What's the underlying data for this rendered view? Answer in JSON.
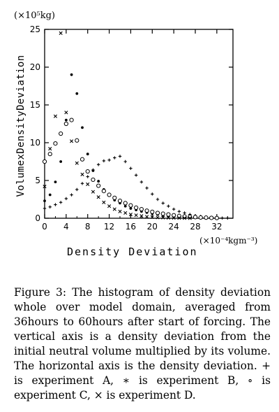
{
  "chart_data": {
    "type": "scatter",
    "y_unit": "(×10⁵kg)",
    "ylabel": "VolumexDensityDeviation",
    "x_unit": "(×10⁻⁴kgm⁻³)",
    "xlabel": "Density Deviation",
    "xlim": [
      0,
      35
    ],
    "ylim": [
      0,
      25
    ],
    "x_ticks": [
      "0",
      "4",
      "8",
      "12",
      "16",
      "20",
      "24",
      "28",
      "32"
    ],
    "x_tick_values": [
      0,
      4,
      8,
      12,
      16,
      20,
      24,
      28,
      32
    ],
    "y_ticks": [
      "0",
      "5",
      "10",
      "15",
      "20",
      "25"
    ],
    "y_tick_values": [
      0,
      5,
      10,
      15,
      20,
      25
    ],
    "grid": false,
    "series": [
      {
        "marker": "plus",
        "points": [
          [
            0,
            1.3
          ],
          [
            1,
            1.5
          ],
          [
            2,
            1.8
          ],
          [
            3,
            2.1
          ],
          [
            4,
            2.6
          ],
          [
            5,
            3.1
          ],
          [
            6,
            3.8
          ],
          [
            7,
            4.6
          ],
          [
            8,
            5.5
          ],
          [
            9,
            6.4
          ],
          [
            10,
            7.1
          ],
          [
            11,
            7.6
          ],
          [
            12,
            7.7
          ],
          [
            13,
            8.0
          ],
          [
            14,
            8.2
          ],
          [
            15,
            7.5
          ],
          [
            16,
            6.6
          ],
          [
            17,
            5.7
          ],
          [
            18,
            4.8
          ],
          [
            19,
            4.0
          ],
          [
            20,
            3.2
          ],
          [
            21,
            2.5
          ],
          [
            22,
            2.0
          ],
          [
            23,
            1.6
          ],
          [
            24,
            1.2
          ],
          [
            25,
            0.9
          ],
          [
            26,
            0.7
          ],
          [
            27,
            0.5
          ],
          [
            28,
            0.35
          ],
          [
            29,
            0.25
          ],
          [
            30,
            0.15
          ],
          [
            31,
            0.1
          ],
          [
            32,
            0.05
          ],
          [
            33,
            0.03
          ],
          [
            34,
            0.02
          ]
        ]
      },
      {
        "marker": "asterisk",
        "points": [
          [
            0,
            2.3
          ],
          [
            1,
            3.1
          ],
          [
            2,
            4.8
          ],
          [
            3,
            7.5
          ],
          [
            4,
            13.0
          ],
          [
            5,
            19.0
          ],
          [
            6,
            16.5
          ],
          [
            7,
            12.0
          ],
          [
            8,
            8.5
          ],
          [
            9,
            6.3
          ],
          [
            10,
            4.9
          ],
          [
            11,
            3.8
          ],
          [
            12,
            3.0
          ],
          [
            13,
            2.4
          ],
          [
            14,
            2.0
          ],
          [
            15,
            1.6
          ],
          [
            16,
            1.3
          ],
          [
            17,
            1.1
          ],
          [
            18,
            0.9
          ],
          [
            19,
            0.75
          ],
          [
            20,
            0.6
          ],
          [
            21,
            0.5
          ],
          [
            22,
            0.4
          ],
          [
            23,
            0.3
          ],
          [
            24,
            0.25
          ],
          [
            25,
            0.2
          ],
          [
            26,
            0.15
          ],
          [
            27,
            0.1
          ],
          [
            28,
            0.08
          ],
          [
            29,
            0.06
          ],
          [
            30,
            0.04
          ],
          [
            31,
            0.03
          ],
          [
            32,
            0.02
          ]
        ]
      },
      {
        "marker": "circle",
        "points": [
          [
            0,
            7.5
          ],
          [
            1,
            8.5
          ],
          [
            2,
            9.9
          ],
          [
            3,
            11.2
          ],
          [
            4,
            12.5
          ],
          [
            5,
            13.0
          ],
          [
            6,
            10.3
          ],
          [
            7,
            7.8
          ],
          [
            8,
            6.2
          ],
          [
            9,
            5.1
          ],
          [
            10,
            4.3
          ],
          [
            11,
            3.6
          ],
          [
            12,
            3.1
          ],
          [
            13,
            2.7
          ],
          [
            14,
            2.3
          ],
          [
            15,
            2.0
          ],
          [
            16,
            1.7
          ],
          [
            17,
            1.4
          ],
          [
            18,
            1.2
          ],
          [
            19,
            1.0
          ],
          [
            20,
            0.85
          ],
          [
            21,
            0.7
          ],
          [
            22,
            0.6
          ],
          [
            23,
            0.5
          ],
          [
            24,
            0.4
          ],
          [
            25,
            0.3
          ],
          [
            26,
            0.25
          ],
          [
            27,
            0.2
          ],
          [
            28,
            0.15
          ],
          [
            29,
            0.1
          ],
          [
            30,
            0.08
          ],
          [
            31,
            0.05
          ],
          [
            32,
            0.03
          ]
        ]
      },
      {
        "marker": "cross",
        "points": [
          [
            0,
            4.2
          ],
          [
            1,
            9.2
          ],
          [
            2,
            13.5
          ],
          [
            3,
            24.5
          ],
          [
            4,
            14.0
          ],
          [
            5,
            10.2
          ],
          [
            6,
            7.3
          ],
          [
            7,
            5.8
          ],
          [
            8,
            4.5
          ],
          [
            9,
            3.5
          ],
          [
            10,
            2.8
          ],
          [
            11,
            2.1
          ],
          [
            12,
            1.6
          ],
          [
            13,
            1.2
          ],
          [
            14,
            0.9
          ],
          [
            15,
            0.7
          ],
          [
            16,
            0.5
          ],
          [
            17,
            0.4
          ],
          [
            18,
            0.3
          ],
          [
            19,
            0.2
          ],
          [
            20,
            0.15
          ],
          [
            21,
            0.1
          ],
          [
            22,
            0.08
          ],
          [
            23,
            0.06
          ],
          [
            24,
            0.04
          ],
          [
            25,
            0.03
          ],
          [
            26,
            0.02
          ],
          [
            27,
            0.01
          ]
        ]
      }
    ]
  },
  "caption": "Figure 3:  The histogram of density deviation whole over model domain, averaged from 36hours to 60hours after start of forcing. The vertical axis is a density deviation from the initial neutral volume multiplied by its volume. The horizontal axis is the density deviation.  + is experiment A, ∗ is experiment B, ∘ is experiment C, × is experiment D."
}
